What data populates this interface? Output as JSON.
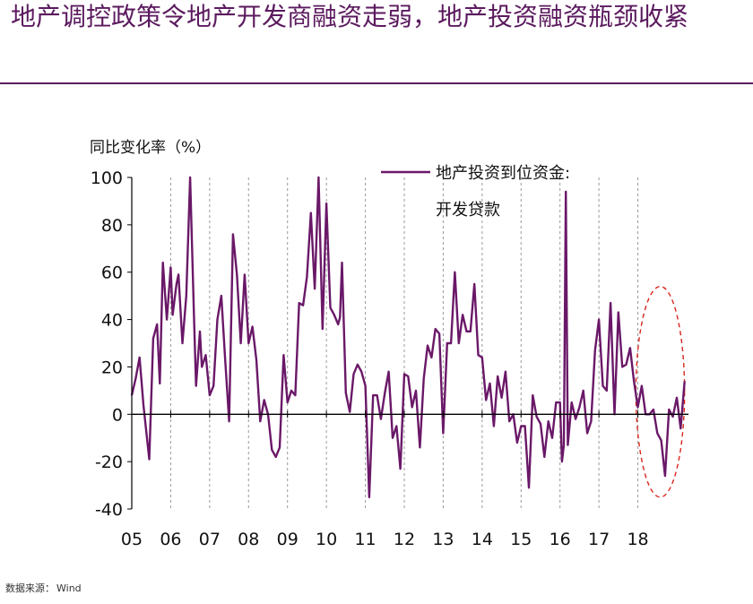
{
  "page": {
    "title": "地产调控政策令地产开发商融资走弱，地产投资融资瓶颈收紧",
    "source_label": "数据来源：",
    "source_value": "Wind"
  },
  "colors": {
    "title": "#5b1a5e",
    "line": "#6a1868",
    "axis": "#000000",
    "ellipse": "#d9261c"
  },
  "chart_data": {
    "type": "line",
    "ylabel": "同比变化率（%）",
    "xlabel": "",
    "ylim": [
      -40,
      100
    ],
    "yticks": [
      -40,
      -20,
      0,
      20,
      40,
      60,
      80,
      100
    ],
    "xlim": [
      2005,
      2019.3
    ],
    "xticks": [
      {
        "label": "05",
        "x": 2005
      },
      {
        "label": "06",
        "x": 2006
      },
      {
        "label": "07",
        "x": 2007
      },
      {
        "label": "08",
        "x": 2008
      },
      {
        "label": "09",
        "x": 2009
      },
      {
        "label": "10",
        "x": 2010
      },
      {
        "label": "11",
        "x": 2011
      },
      {
        "label": "12",
        "x": 2012
      },
      {
        "label": "13",
        "x": 2013
      },
      {
        "label": "14",
        "x": 2014
      },
      {
        "label": "15",
        "x": 2015
      },
      {
        "label": "16",
        "x": 2016
      },
      {
        "label": "17",
        "x": 2017
      },
      {
        "label": "18",
        "x": 2018
      }
    ],
    "legend": {
      "placement": "top-right",
      "lines": [
        "地产投资到位资金:",
        "开发贷款"
      ]
    },
    "annotation": {
      "shape": "dashed-ellipse",
      "x_range": [
        2017.95,
        2019.2
      ],
      "y_range": [
        -35,
        54
      ]
    },
    "series": [
      {
        "name": "地产投资到位资金:开发贷款",
        "x": [
          2005.0,
          2005.1,
          2005.2,
          2005.3,
          2005.45,
          2005.55,
          2005.65,
          2005.72,
          2005.8,
          2005.9,
          2006.0,
          2006.05,
          2006.15,
          2006.2,
          2006.3,
          2006.4,
          2006.5,
          2006.6,
          2006.65,
          2006.75,
          2006.8,
          2006.9,
          2007.0,
          2007.05,
          2007.1,
          2007.2,
          2007.3,
          2007.4,
          2007.5,
          2007.6,
          2007.7,
          2007.8,
          2007.9,
          2008.0,
          2008.1,
          2008.2,
          2008.3,
          2008.4,
          2008.5,
          2008.6,
          2008.7,
          2008.8,
          2008.9,
          2009.0,
          2009.1,
          2009.2,
          2009.3,
          2009.4,
          2009.5,
          2009.6,
          2009.7,
          2009.8,
          2009.9,
          2010.0,
          2010.1,
          2010.2,
          2010.3,
          2010.35,
          2010.4,
          2010.5,
          2010.6,
          2010.7,
          2010.8,
          2010.9,
          2011.0,
          2011.1,
          2011.2,
          2011.3,
          2011.4,
          2011.5,
          2011.6,
          2011.7,
          2011.8,
          2011.9,
          2012.0,
          2012.1,
          2012.2,
          2012.3,
          2012.4,
          2012.5,
          2012.6,
          2012.7,
          2012.8,
          2012.9,
          2013.0,
          2013.1,
          2013.2,
          2013.3,
          2013.4,
          2013.5,
          2013.6,
          2013.7,
          2013.8,
          2013.9,
          2014.0,
          2014.1,
          2014.2,
          2014.3,
          2014.4,
          2014.5,
          2014.6,
          2014.7,
          2014.8,
          2014.9,
          2015.0,
          2015.1,
          2015.2,
          2015.3,
          2015.4,
          2015.5,
          2015.6,
          2015.7,
          2015.8,
          2015.9,
          2016.0,
          2016.05,
          2016.1,
          2016.15,
          2016.2,
          2016.3,
          2016.4,
          2016.5,
          2016.6,
          2016.7,
          2016.8,
          2016.9,
          2017.0,
          2017.1,
          2017.2,
          2017.3,
          2017.4,
          2017.5,
          2017.6,
          2017.7,
          2017.8,
          2017.9,
          2018.0,
          2018.1,
          2018.2,
          2018.3,
          2018.4,
          2018.5,
          2018.6,
          2018.7,
          2018.8,
          2018.9,
          2019.0,
          2019.1,
          2019.2
        ],
        "values": [
          8,
          15,
          24,
          4,
          -19,
          32,
          38,
          13,
          64,
          40,
          62,
          42,
          55,
          59,
          30,
          50,
          100,
          40,
          12,
          35,
          20,
          25,
          8,
          10,
          12,
          40,
          50,
          23,
          -3,
          76,
          59,
          30,
          59,
          30,
          37,
          23,
          -3,
          6,
          0,
          -15,
          -18,
          -14,
          25,
          5,
          10,
          8,
          47,
          46,
          58,
          85,
          53,
          100,
          36,
          89,
          45,
          42,
          38,
          41,
          64,
          9,
          1,
          17,
          21,
          18,
          12,
          -35,
          8,
          8,
          -2,
          9,
          18,
          -10,
          -5,
          -23,
          17,
          16,
          3,
          10,
          -14,
          15,
          29,
          24,
          36,
          34,
          -8,
          30,
          30,
          60,
          30,
          42,
          35,
          35,
          55,
          25,
          24,
          6,
          13,
          -5,
          16,
          7,
          18,
          -3,
          0,
          -12,
          -5,
          -5,
          -31,
          8,
          -1,
          -4,
          -18,
          -3,
          -10,
          5,
          5,
          -20,
          -13,
          94,
          -13,
          5,
          -2,
          3,
          10,
          -8,
          -3,
          27,
          40,
          12,
          10,
          47,
          0,
          43,
          20,
          21,
          28,
          14,
          3,
          12,
          0,
          0,
          2,
          -8,
          -11,
          -26,
          2,
          -1,
          7,
          -6,
          14
        ]
      }
    ]
  }
}
